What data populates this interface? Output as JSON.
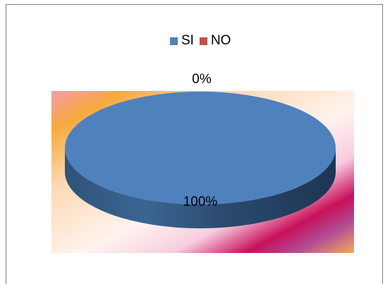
{
  "chart_data": {
    "type": "pie",
    "categories": [
      "SI",
      "NO"
    ],
    "values": [
      100,
      0
    ],
    "data_labels": [
      "100%",
      "0%"
    ],
    "colors": [
      "#4f81bd",
      "#c0504d"
    ],
    "legend_position": "top",
    "style": "3d"
  },
  "legend": {
    "items": [
      {
        "label": "SI",
        "color": "#4f81bd"
      },
      {
        "label": "NO",
        "color": "#c0504d"
      }
    ]
  }
}
